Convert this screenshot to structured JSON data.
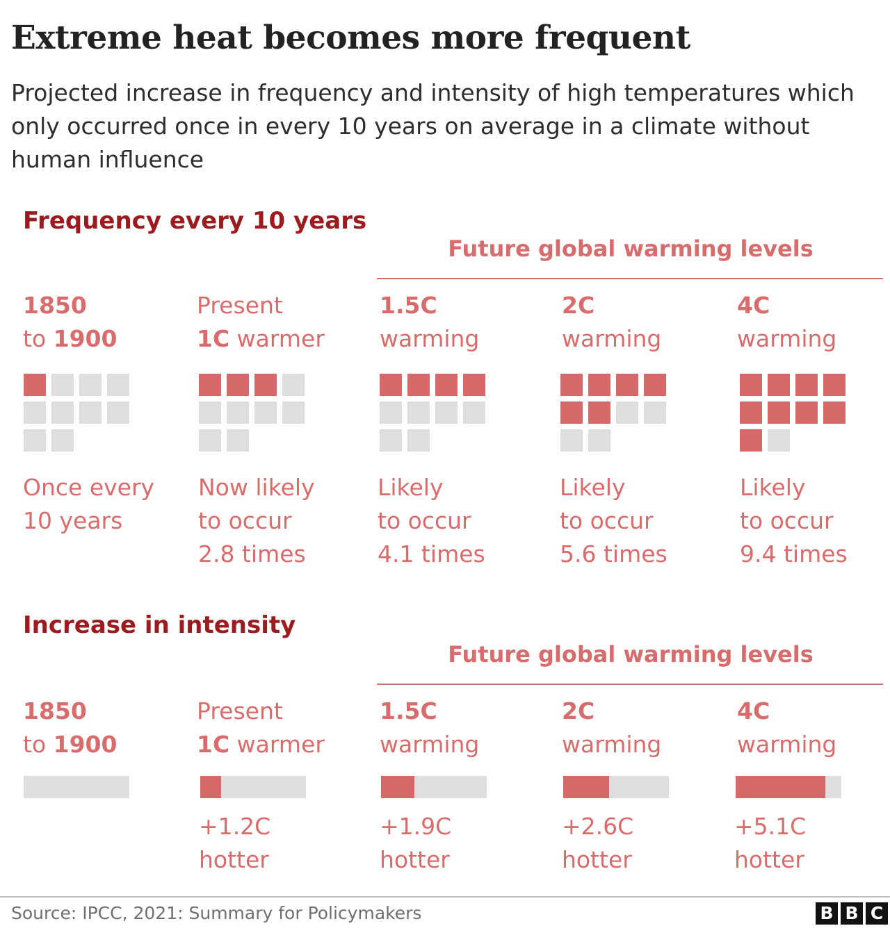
{
  "title": "Extreme heat becomes more frequent",
  "subtitle": "Projected increase in frequency and intensity of high temperatures which only occurred once in every 10 years on average in a climate without human influence",
  "colors": {
    "accent": "#d6686a",
    "empty": "#dedede",
    "section_title": "#9c1b1e",
    "label": "#d86c6c"
  },
  "chart_data": [
    {
      "type": "bar",
      "title": "Frequency every 10 years",
      "group_label": "Future global warming levels",
      "columns": [
        {
          "head_line1": "1850",
          "head_line2_a": "to ",
          "head_line2_b": "1900",
          "desc_lines": [
            "Once every",
            "10 years"
          ],
          "value": 1,
          "total": 10
        },
        {
          "head_line1": "Present",
          "head_line2_a": "1C",
          "head_line2_b": " warmer",
          "desc_lines": [
            "Now likely",
            "to occur",
            "2.8 times"
          ],
          "value": 2.8,
          "total": 10
        },
        {
          "head_line1": "1.5C",
          "head_line2_a": "",
          "head_line2_b": "warming",
          "desc_lines": [
            "Likely",
            "to occur",
            "4.1 times"
          ],
          "value": 4.1,
          "total": 10
        },
        {
          "head_line1": "2C",
          "head_line2_a": "",
          "head_line2_b": "warming",
          "desc_lines": [
            "Likely",
            "to occur",
            "5.6 times"
          ],
          "value": 5.6,
          "total": 10
        },
        {
          "head_line1": "4C",
          "head_line2_a": "",
          "head_line2_b": "warming",
          "desc_lines": [
            "Likely",
            "to occur",
            "9.4 times"
          ],
          "value": 9.4,
          "total": 10
        }
      ]
    },
    {
      "type": "bar",
      "title": "Increase in intensity",
      "group_label": "Future global warming levels",
      "max_value": 6,
      "columns": [
        {
          "head_line1": "1850",
          "head_line2_a": "to ",
          "head_line2_b": "1900",
          "value": 0,
          "label_lines": []
        },
        {
          "head_line1": "Present",
          "head_line2_a": "1C",
          "head_line2_b": " warmer",
          "value": 1.2,
          "label_lines": [
            "+1.2C",
            "hotter"
          ]
        },
        {
          "head_line1": "1.5C",
          "head_line2_a": "",
          "head_line2_b": "warming",
          "value": 1.9,
          "label_lines": [
            "+1.9C",
            "hotter"
          ]
        },
        {
          "head_line1": "2C",
          "head_line2_a": "",
          "head_line2_b": "warming",
          "value": 2.6,
          "label_lines": [
            "+2.6C",
            "hotter"
          ]
        },
        {
          "head_line1": "4C",
          "head_line2_a": "",
          "head_line2_b": "warming",
          "value": 5.1,
          "label_lines": [
            "+5.1C",
            "hotter"
          ]
        }
      ]
    }
  ],
  "footer": {
    "source": "Source: IPCC, 2021: Summary for Policymakers",
    "logo_letters": [
      "B",
      "B",
      "C"
    ]
  }
}
